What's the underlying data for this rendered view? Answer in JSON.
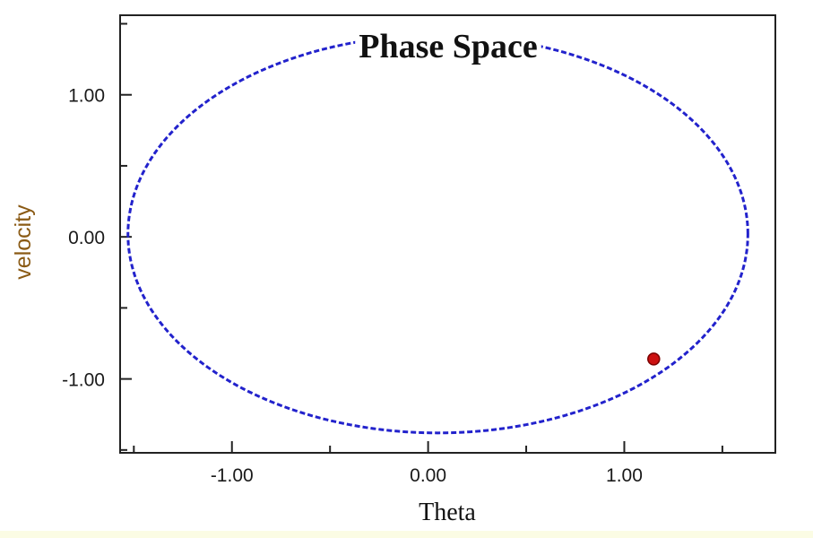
{
  "chart_data": {
    "type": "line",
    "title": "Phase Space",
    "xlabel": "Theta",
    "ylabel": "velocity",
    "xlim": [
      -1.57,
      1.77
    ],
    "ylim": [
      -1.52,
      1.56
    ],
    "x_ticks": [
      -1.0,
      0.0,
      1.0
    ],
    "x_tick_labels": [
      "-1.00",
      "0.00",
      "1.00"
    ],
    "y_ticks": [
      -1.0,
      0.0,
      1.0
    ],
    "y_tick_labels": [
      "-1.00",
      "0.00",
      "1.00"
    ],
    "grid": false,
    "series": [
      {
        "style": "dashed",
        "color": "#2222cc",
        "shape": "ellipse",
        "center": [
          0.05,
          0.02
        ],
        "theta_radius": 1.58,
        "velocity_radius": 1.4
      }
    ],
    "marker": {
      "x": 1.15,
      "y": -0.86,
      "color": "#cc1111"
    }
  }
}
